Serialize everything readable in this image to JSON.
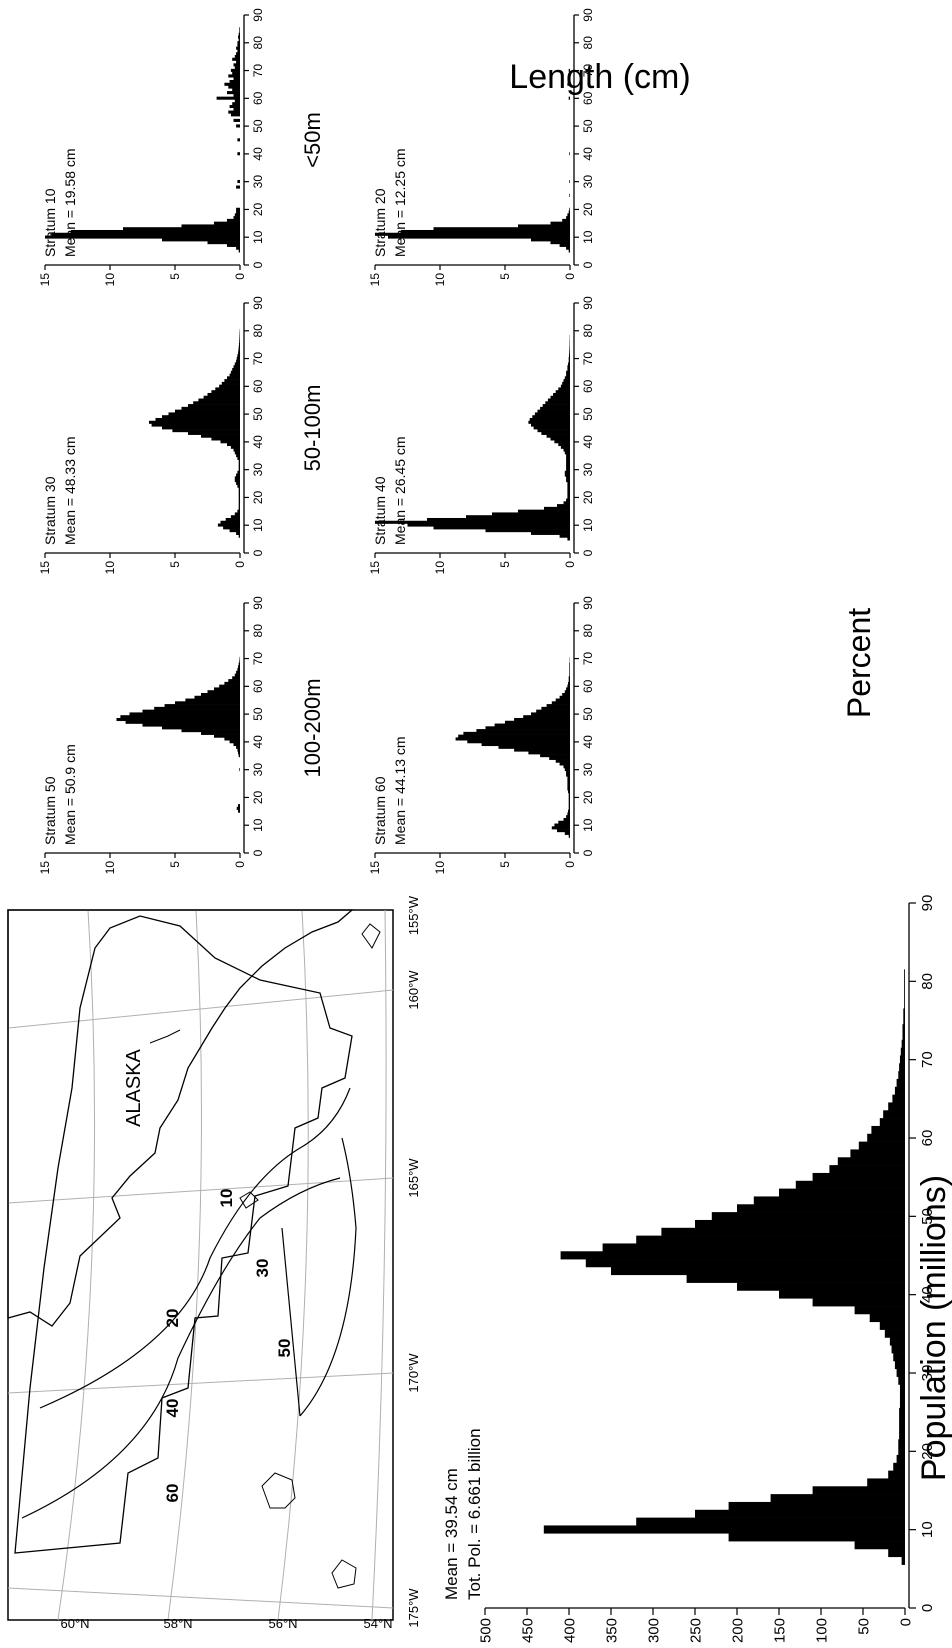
{
  "map": {
    "region_label": "ALASKA",
    "lon_labels": [
      "175°W",
      "170°W",
      "165°W",
      "160°W",
      "155°W"
    ],
    "lat_labels": [
      "60°N",
      "58°N",
      "56°N",
      "54°N"
    ],
    "stratum_labels": [
      "10",
      "20",
      "30",
      "40",
      "50",
      "60"
    ]
  },
  "labels": {
    "percent": "Percent",
    "length": "Length (cm)",
    "population": "Population (millions)"
  },
  "chart_data": [
    {
      "type": "bar",
      "id": "total",
      "annotations": [
        "Mean = 39.54 cm",
        "Tot. Pol. = 6.661 billion"
      ],
      "xlabel": "Length (cm)",
      "ylabel": "Population (millions)",
      "xlim": [
        0,
        90
      ],
      "ylim": [
        0,
        500
      ],
      "xticks": [
        0,
        10,
        20,
        30,
        40,
        50,
        60,
        70,
        80,
        90
      ],
      "yticks": [
        0,
        50,
        100,
        150,
        200,
        250,
        300,
        350,
        400,
        450,
        500
      ],
      "x": [
        6,
        7,
        8,
        9,
        10,
        11,
        12,
        13,
        14,
        15,
        16,
        17,
        18,
        19,
        20,
        21,
        22,
        23,
        24,
        25,
        26,
        27,
        28,
        29,
        30,
        31,
        32,
        33,
        34,
        35,
        36,
        37,
        38,
        39,
        40,
        41,
        42,
        43,
        44,
        45,
        46,
        47,
        48,
        49,
        50,
        51,
        52,
        53,
        54,
        55,
        56,
        57,
        58,
        59,
        60,
        61,
        62,
        63,
        64,
        65,
        66,
        67,
        68,
        69,
        70,
        71,
        72,
        73,
        74,
        75,
        76,
        77,
        78,
        79,
        80,
        81,
        82,
        83
      ],
      "values": [
        4,
        20,
        60,
        210,
        430,
        320,
        250,
        210,
        160,
        110,
        45,
        20,
        14,
        10,
        8,
        8,
        7,
        7,
        7,
        7,
        6,
        6,
        6,
        8,
        10,
        12,
        14,
        16,
        18,
        24,
        30,
        42,
        60,
        110,
        150,
        200,
        260,
        350,
        380,
        410,
        360,
        320,
        290,
        250,
        230,
        200,
        180,
        150,
        130,
        110,
        90,
        80,
        65,
        55,
        45,
        40,
        30,
        26,
        20,
        15,
        12,
        10,
        8,
        7,
        6,
        5,
        4,
        3,
        3,
        2,
        2,
        1,
        1,
        1,
        1,
        1,
        0,
        0
      ]
    },
    {
      "type": "bar",
      "id": "stratum60",
      "title": "100-200m",
      "annotations": [
        "Stratum 60",
        "Mean = 44.13 cm"
      ],
      "xlim": [
        0,
        90
      ],
      "ylim": [
        0,
        15
      ],
      "xticks": [
        0,
        10,
        20,
        30,
        40,
        50,
        60,
        70,
        80,
        90
      ],
      "yticks": [
        0,
        5,
        10,
        15
      ],
      "x": [
        6,
        7,
        8,
        9,
        10,
        11,
        12,
        13,
        14,
        15,
        16,
        17,
        18,
        19,
        20,
        21,
        22,
        23,
        24,
        25,
        26,
        27,
        28,
        29,
        30,
        31,
        32,
        33,
        34,
        35,
        36,
        37,
        38,
        39,
        40,
        41,
        42,
        43,
        44,
        45,
        46,
        47,
        48,
        49,
        50,
        51,
        52,
        53,
        54,
        55,
        56,
        57,
        58,
        59,
        60,
        61,
        62,
        63,
        64,
        65,
        66,
        67,
        68,
        69,
        70
      ],
      "values": [
        0.1,
        0.4,
        1.0,
        1.4,
        1.2,
        0.9,
        0.5,
        0.3,
        0.2,
        0.15,
        0.1,
        0.1,
        0.1,
        0.1,
        0.1,
        0.1,
        0.15,
        0.2,
        0.2,
        0.2,
        0.2,
        0.2,
        0.3,
        0.3,
        0.4,
        0.5,
        0.8,
        1.1,
        1.6,
        2.3,
        3.2,
        4.3,
        5.5,
        6.8,
        7.9,
        8.8,
        8.6,
        8.2,
        7.2,
        6.5,
        5.8,
        5.0,
        4.3,
        3.6,
        3.0,
        2.6,
        2.2,
        1.8,
        1.4,
        1.1,
        0.8,
        0.6,
        0.4,
        0.3,
        0.2,
        0.15,
        0.1,
        0.1,
        0.05,
        0.05,
        0.05,
        0.05,
        0.05,
        0.02,
        0.02
      ]
    },
    {
      "type": "bar",
      "id": "stratum40",
      "title": "50-100m",
      "annotations": [
        "Stratum 40",
        "Mean = 26.45 cm"
      ],
      "xlim": [
        0,
        90
      ],
      "ylim": [
        0,
        15
      ],
      "xticks": [
        0,
        10,
        20,
        30,
        40,
        50,
        60,
        70,
        80,
        90
      ],
      "yticks": [
        0,
        5,
        10,
        15
      ],
      "x": [
        5,
        6,
        7,
        8,
        9,
        10,
        11,
        12,
        13,
        14,
        15,
        16,
        17,
        18,
        19,
        20,
        21,
        22,
        23,
        24,
        25,
        26,
        27,
        28,
        29,
        30,
        31,
        32,
        33,
        34,
        35,
        36,
        37,
        38,
        39,
        40,
        41,
        42,
        43,
        44,
        45,
        46,
        47,
        48,
        49,
        50,
        51,
        52,
        53,
        54,
        55,
        56,
        57,
        58,
        59,
        60,
        61,
        62,
        63,
        64,
        65,
        66,
        67,
        68,
        69,
        70,
        71,
        72,
        73,
        74,
        75,
        76,
        77,
        78
      ],
      "values": [
        0.2,
        0.8,
        3.0,
        6.5,
        10.5,
        12.5,
        15.0,
        11.0,
        8.0,
        6.0,
        4.0,
        2.0,
        1.0,
        0.5,
        0.3,
        0.2,
        0.2,
        0.2,
        0.2,
        0.2,
        0.2,
        0.3,
        0.3,
        0.4,
        0.4,
        0.3,
        0.3,
        0.3,
        0.3,
        0.3,
        0.3,
        0.4,
        0.5,
        0.7,
        0.9,
        1.2,
        1.5,
        1.8,
        2.2,
        2.5,
        2.8,
        3.0,
        3.2,
        3.1,
        2.9,
        2.7,
        2.5,
        2.3,
        2.1,
        1.9,
        1.7,
        1.5,
        1.3,
        1.1,
        0.9,
        0.7,
        0.6,
        0.5,
        0.4,
        0.3,
        0.3,
        0.2,
        0.2,
        0.15,
        0.1,
        0.1,
        0.08,
        0.06,
        0.05,
        0.04,
        0.03,
        0.03,
        0.02,
        0.02
      ]
    },
    {
      "type": "bar",
      "id": "stratum20",
      "title": "<50m",
      "annotations": [
        "Stratum 20",
        "Mean = 12.25 cm"
      ],
      "xlim": [
        0,
        90
      ],
      "ylim": [
        0,
        15
      ],
      "xticks": [
        0,
        10,
        20,
        30,
        40,
        50,
        60,
        70,
        80,
        90
      ],
      "yticks": [
        0,
        5,
        10,
        15
      ],
      "x": [
        5,
        6,
        7,
        8,
        9,
        10,
        11,
        12,
        13,
        14,
        15,
        16,
        17,
        18,
        19,
        20,
        25,
        30,
        40,
        60,
        65,
        70
      ],
      "values": [
        0.1,
        0.3,
        0.8,
        1.5,
        3.0,
        14.0,
        15.0,
        13.0,
        10.5,
        4.0,
        1.5,
        0.6,
        0.3,
        0.2,
        0.1,
        0.05,
        0.05,
        0.05,
        0.05,
        0.1,
        0.2,
        0.1
      ]
    },
    {
      "type": "bar",
      "id": "stratum50",
      "annotations": [
        "Stratum 50",
        "Mean = 50.9 cm"
      ],
      "xlim": [
        0,
        90
      ],
      "ylim": [
        0,
        15
      ],
      "xticks": [
        0,
        10,
        20,
        30,
        40,
        50,
        60,
        70,
        80,
        90
      ],
      "yticks": [
        0,
        5,
        10,
        15
      ],
      "x": [
        15,
        16,
        17,
        30,
        35,
        36,
        37,
        38,
        39,
        40,
        41,
        42,
        43,
        44,
        45,
        46,
        47,
        48,
        49,
        50,
        51,
        52,
        53,
        54,
        55,
        56,
        57,
        58,
        59,
        60,
        61,
        62,
        63,
        64,
        65,
        66,
        67,
        68,
        69,
        70
      ],
      "values": [
        0.15,
        0.25,
        0.15,
        0.05,
        0.1,
        0.15,
        0.2,
        0.3,
        0.5,
        0.8,
        1.2,
        2.0,
        3.0,
        4.5,
        6.0,
        7.5,
        8.8,
        9.5,
        9.2,
        8.5,
        7.5,
        6.6,
        5.8,
        5.0,
        4.2,
        3.5,
        3.0,
        2.5,
        2.0,
        1.6,
        1.2,
        0.9,
        0.6,
        0.4,
        0.3,
        0.2,
        0.15,
        0.1,
        0.05,
        0.03
      ]
    },
    {
      "type": "bar",
      "id": "stratum30",
      "annotations": [
        "Stratum 30",
        "Mean = 48.33 cm"
      ],
      "xlim": [
        0,
        90
      ],
      "ylim": [
        0,
        15
      ],
      "xticks": [
        0,
        10,
        20,
        30,
        40,
        50,
        60,
        70,
        80,
        90
      ],
      "yticks": [
        0,
        5,
        10,
        15
      ],
      "x": [
        6,
        7,
        8,
        9,
        10,
        11,
        12,
        13,
        14,
        15,
        16,
        17,
        18,
        19,
        20,
        21,
        22,
        23,
        24,
        25,
        26,
        27,
        28,
        29,
        30,
        31,
        32,
        33,
        34,
        35,
        36,
        37,
        38,
        39,
        40,
        41,
        42,
        43,
        44,
        45,
        46,
        47,
        48,
        49,
        50,
        51,
        52,
        53,
        54,
        55,
        56,
        57,
        58,
        59,
        60,
        61,
        62,
        63,
        64,
        65,
        66,
        67,
        68,
        69,
        70,
        71,
        72,
        73,
        74,
        75,
        76,
        77,
        78,
        79,
        80
      ],
      "values": [
        0.1,
        0.3,
        0.8,
        1.3,
        1.7,
        1.5,
        1.1,
        0.7,
        0.4,
        0.2,
        0.1,
        0.1,
        0.1,
        0.1,
        0.1,
        0.1,
        0.1,
        0.1,
        0.2,
        0.3,
        0.4,
        0.4,
        0.3,
        0.2,
        0.1,
        0.1,
        0.1,
        0.1,
        0.2,
        0.3,
        0.4,
        0.5,
        0.7,
        1.0,
        1.5,
        2.2,
        3.0,
        4.0,
        5.2,
        6.0,
        6.8,
        7.0,
        6.5,
        6.0,
        5.5,
        5.0,
        4.5,
        4.0,
        3.6,
        3.2,
        2.8,
        2.5,
        2.2,
        1.9,
        1.6,
        1.4,
        1.2,
        1.0,
        0.8,
        0.7,
        0.6,
        0.5,
        0.4,
        0.3,
        0.25,
        0.2,
        0.15,
        0.12,
        0.1,
        0.08,
        0.06,
        0.05,
        0.04,
        0.03,
        0.02
      ]
    },
    {
      "type": "bar",
      "id": "stratum10",
      "annotations": [
        "Stratum 10",
        "Mean = 19.58 cm"
      ],
      "xlim": [
        0,
        90
      ],
      "ylim": [
        0,
        15
      ],
      "xticks": [
        0,
        10,
        20,
        30,
        40,
        50,
        60,
        70,
        80,
        90
      ],
      "yticks": [
        0,
        5,
        10,
        15
      ],
      "x": [
        5,
        6,
        7,
        8,
        9,
        10,
        11,
        12,
        13,
        14,
        15,
        16,
        17,
        18,
        19,
        20,
        28,
        30,
        40,
        45,
        50,
        52,
        54,
        55,
        56,
        57,
        58,
        59,
        60,
        61,
        62,
        63,
        64,
        65,
        66,
        67,
        68,
        69,
        70,
        71,
        72,
        73,
        74,
        75,
        76,
        77,
        78,
        79,
        80,
        81,
        82,
        83,
        84,
        85
      ],
      "values": [
        0.1,
        0.3,
        1.0,
        2.5,
        6.0,
        15.0,
        14.5,
        13.0,
        9.0,
        4.5,
        2.0,
        1.0,
        0.5,
        0.4,
        0.3,
        0.3,
        0.3,
        0.2,
        0.2,
        0.2,
        0.3,
        0.5,
        0.7,
        0.9,
        0.5,
        0.8,
        0.6,
        0.4,
        1.8,
        0.5,
        1.0,
        0.6,
        0.9,
        1.2,
        0.8,
        0.5,
        0.9,
        0.6,
        0.7,
        0.4,
        0.5,
        0.3,
        0.6,
        0.4,
        0.3,
        0.2,
        0.3,
        0.2,
        0.2,
        0.1,
        0.15,
        0.1,
        0.05,
        0.05
      ]
    }
  ]
}
